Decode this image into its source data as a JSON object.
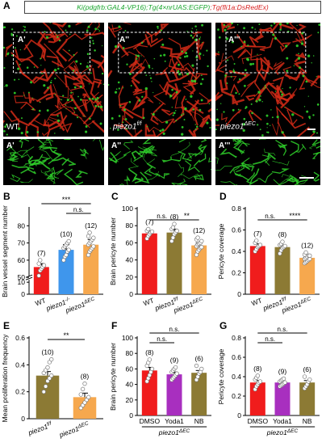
{
  "header": {
    "part1": "Ki(pdgfrb:GAL4-VP16);Tg(4×nrUAS:EGFP)",
    "part2": ";Tg(fli1a:DsRedEx)"
  },
  "panel_labels": [
    "A",
    "B",
    "C",
    "D",
    "E",
    "F",
    "G"
  ],
  "micro": {
    "top": [
      {
        "tag": "A'",
        "genotype": "WT",
        "sup": ""
      },
      {
        "tag": "A''",
        "genotype": "piezo1",
        "sup": "f/f"
      },
      {
        "tag": "A'''",
        "genotype": "piezo1",
        "sup": "ΔEC"
      }
    ],
    "bottom": [
      {
        "tag": "A'"
      },
      {
        "tag": "A''"
      },
      {
        "tag": "A'''"
      }
    ],
    "colors": {
      "vessel": "#d12a16",
      "pericyte": "#2fd12a",
      "bg": "#000000"
    }
  },
  "chart_data": [
    {
      "id": "B",
      "type": "bar",
      "ylabel": "Brain vessel segment number",
      "categories": [
        "WT",
        "piezo1-/-",
        "piezo1ΔEC"
      ],
      "cat_main": [
        "WT",
        "piezo1",
        "piezo1"
      ],
      "cat_sup": [
        "",
        "-/-",
        "ΔEC"
      ],
      "values": [
        56,
        66,
        69
      ],
      "errors": [
        2,
        3,
        3
      ],
      "n": [
        "(7)",
        "(10)",
        "(12)"
      ],
      "colors": [
        "#f01c1c",
        "#3f96ec",
        "#f6a84e"
      ],
      "ylim": [
        0,
        90
      ],
      "yticks": [
        0,
        10,
        50,
        60,
        70,
        80
      ],
      "broken_axis": [
        10,
        50
      ],
      "sig": [
        {
          "from": 0,
          "to": 2,
          "label": "***"
        },
        {
          "from": 1,
          "to": 2,
          "label": "n.s."
        }
      ],
      "points": [
        [
          51,
          54,
          55,
          56,
          57,
          58,
          60
        ],
        [
          60,
          62,
          63,
          65,
          66,
          67,
          68,
          69,
          70,
          71
        ],
        [
          63,
          65,
          66,
          67,
          68,
          69,
          70,
          71,
          72,
          73,
          74,
          76
        ]
      ]
    },
    {
      "id": "C",
      "type": "bar",
      "ylabel": "Brain pericyte number",
      "categories": [
        "WT",
        "piezo1f/f",
        "piezo1ΔEC"
      ],
      "cat_main": [
        "WT",
        "piezo1",
        "piezo1"
      ],
      "cat_sup": [
        "",
        "f/f",
        "ΔEC"
      ],
      "values": [
        71,
        72,
        57
      ],
      "errors": [
        3,
        4,
        3
      ],
      "n": [
        "(7)",
        "(8)",
        "(12)"
      ],
      "colors": [
        "#f01c1c",
        "#8c7a34",
        "#f6a84e"
      ],
      "ylim": [
        0,
        100
      ],
      "yticks": [
        0,
        20,
        40,
        60,
        80,
        100
      ],
      "sig": [
        {
          "from": 0,
          "to": 1,
          "label": "n.s."
        },
        {
          "from": 1,
          "to": 2,
          "label": "**"
        }
      ],
      "points": [
        [
          65,
          68,
          70,
          72,
          73,
          74,
          76
        ],
        [
          62,
          66,
          70,
          72,
          74,
          76,
          78,
          82
        ],
        [
          46,
          50,
          52,
          54,
          55,
          56,
          58,
          59,
          60,
          62,
          64,
          66
        ]
      ]
    },
    {
      "id": "D",
      "type": "bar",
      "ylabel": "Pericyte coverage",
      "categories": [
        "WT",
        "piezo1f/f",
        "piezo1ΔEC"
      ],
      "cat_main": [
        "WT",
        "piezo1",
        "piezo1"
      ],
      "cat_sup": [
        "",
        "f/f",
        "ΔEC"
      ],
      "values": [
        0.45,
        0.44,
        0.34
      ],
      "errors": [
        0.02,
        0.02,
        0.01
      ],
      "n": [
        "(7)",
        "(8)",
        "(12)"
      ],
      "colors": [
        "#f01c1c",
        "#8c7a34",
        "#f6a84e"
      ],
      "ylim": [
        0,
        0.8
      ],
      "yticks": [
        0,
        0.2,
        0.4,
        0.6,
        0.8
      ],
      "yticklabels": [
        "0",
        "0.2",
        "0.4",
        "0.6",
        "0.8"
      ],
      "sig": [
        {
          "from": 0,
          "to": 1,
          "label": "n.s."
        },
        {
          "from": 1,
          "to": 2,
          "label": "****"
        }
      ],
      "points": [
        [
          0.4,
          0.42,
          0.44,
          0.45,
          0.46,
          0.48,
          0.5
        ],
        [
          0.38,
          0.41,
          0.43,
          0.44,
          0.45,
          0.46,
          0.47,
          0.49
        ],
        [
          0.29,
          0.3,
          0.31,
          0.32,
          0.33,
          0.33,
          0.34,
          0.35,
          0.36,
          0.36,
          0.37,
          0.39
        ]
      ]
    },
    {
      "id": "E",
      "type": "bar",
      "ylabel": "Mean proliferation frequency",
      "categories": [
        "piezo1f/f",
        "piezo1ΔEC"
      ],
      "cat_main": [
        "piezo1",
        "piezo1"
      ],
      "cat_sup": [
        "f/f",
        "ΔEC"
      ],
      "values": [
        0.32,
        0.16
      ],
      "errors": [
        0.03,
        0.03
      ],
      "n": [
        "(10)",
        "(8)"
      ],
      "colors": [
        "#8c7a34",
        "#f6a84e"
      ],
      "ylim": [
        0,
        0.6
      ],
      "yticks": [
        0,
        0.2,
        0.4,
        0.6
      ],
      "yticklabels": [
        "0",
        "0.2",
        "0.4",
        "0.6"
      ],
      "sig": [
        {
          "from": 0,
          "to": 1,
          "label": "**"
        }
      ],
      "points": [
        [
          0.2,
          0.24,
          0.28,
          0.3,
          0.32,
          0.34,
          0.36,
          0.38,
          0.42,
          0.44
        ],
        [
          0.08,
          0.1,
          0.12,
          0.14,
          0.16,
          0.18,
          0.22,
          0.26
        ]
      ]
    },
    {
      "id": "F",
      "type": "bar",
      "ylabel": "Brain pericyte number",
      "categories": [
        "DMSO",
        "Yoda1",
        "NB"
      ],
      "group_label": "piezo1ΔEC",
      "group_main": "piezo1",
      "group_sup": "ΔEC",
      "values": [
        58,
        53,
        55
      ],
      "errors": [
        4,
        3,
        3
      ],
      "n": [
        "(8)",
        "(9)",
        "(6)"
      ],
      "colors": [
        "#f01c1c",
        "#a82fbf",
        "#8c7a34"
      ],
      "ylim": [
        0,
        100
      ],
      "yticks": [
        0,
        20,
        40,
        60,
        80,
        100
      ],
      "sig": [
        {
          "from": 0,
          "to": 1,
          "label": "n.s."
        },
        {
          "from": 0,
          "to": 2,
          "label": "n.s."
        }
      ],
      "points": [
        [
          44,
          48,
          52,
          56,
          60,
          64,
          68,
          72
        ],
        [
          46,
          48,
          50,
          52,
          54,
          56,
          58,
          60,
          62
        ],
        [
          46,
          50,
          54,
          56,
          60,
          64
        ]
      ]
    },
    {
      "id": "G",
      "type": "bar",
      "ylabel": "Pericyte coverage",
      "categories": [
        "DMSO",
        "Yoda1",
        "NB"
      ],
      "group_label": "piezo1ΔEC",
      "group_main": "piezo1",
      "group_sup": "ΔEC",
      "values": [
        0.34,
        0.34,
        0.34
      ],
      "errors": [
        0.02,
        0.01,
        0.02
      ],
      "n": [
        "(8)",
        "(9)",
        "(6)"
      ],
      "colors": [
        "#f01c1c",
        "#a82fbf",
        "#8c7a34"
      ],
      "ylim": [
        0,
        0.8
      ],
      "yticks": [
        0,
        0.2,
        0.4,
        0.6,
        0.8
      ],
      "yticklabels": [
        "0",
        "0.2",
        "0.4",
        "0.6",
        "0.8"
      ],
      "sig": [
        {
          "from": 0,
          "to": 1,
          "label": "n.s."
        },
        {
          "from": 0,
          "to": 2,
          "label": "n.s."
        }
      ],
      "points": [
        [
          0.27,
          0.3,
          0.32,
          0.34,
          0.35,
          0.37,
          0.39,
          0.41
        ],
        [
          0.3,
          0.31,
          0.32,
          0.33,
          0.34,
          0.35,
          0.36,
          0.37,
          0.38
        ],
        [
          0.28,
          0.3,
          0.32,
          0.35,
          0.37,
          0.4
        ]
      ]
    }
  ]
}
